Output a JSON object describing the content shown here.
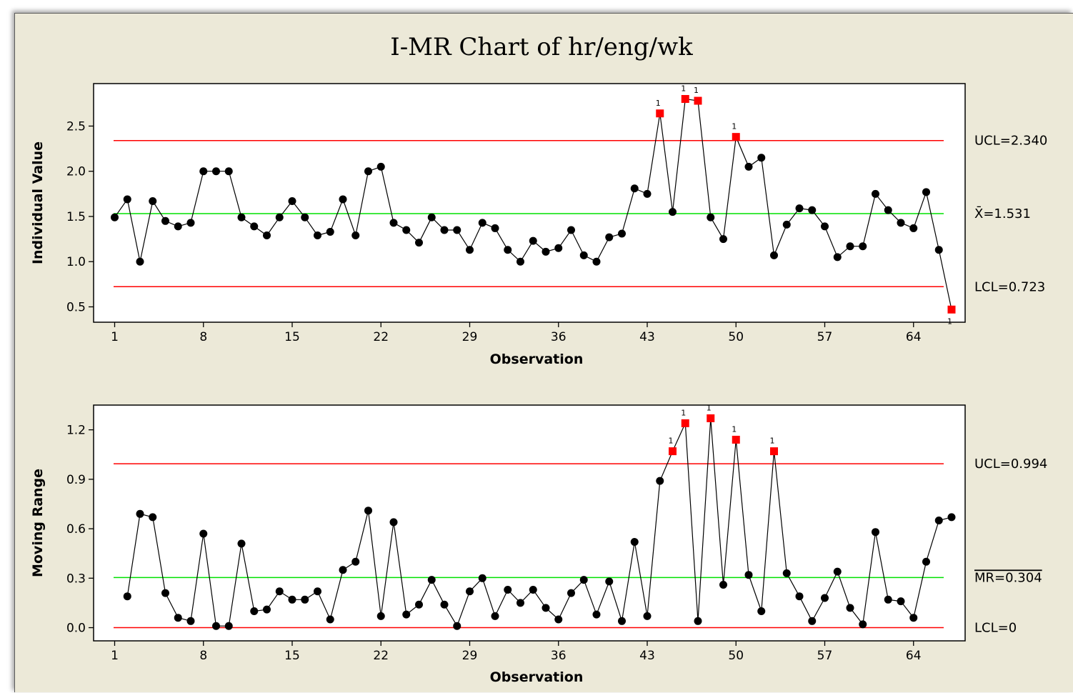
{
  "chart_data": {
    "title": "I-MR Chart of hr/eng/wk",
    "panels": [
      {
        "type": "line",
        "role": "individuals",
        "ylabel": "Individual Value",
        "xlabel": "Observation",
        "ylim": [
          0.33,
          2.97
        ],
        "yticks": [
          0.5,
          1.0,
          1.5,
          2.0,
          2.5
        ],
        "ytick_labels": [
          "0.5",
          "1.0",
          "1.5",
          "2.0",
          "2.5"
        ],
        "xticks": [
          1,
          8,
          15,
          22,
          29,
          36,
          43,
          50,
          57,
          64
        ],
        "xtick_labels": [
          "1",
          "8",
          "15",
          "22",
          "29",
          "36",
          "43",
          "50",
          "57",
          "64"
        ],
        "limits": [
          {
            "label": "UCL=2.340",
            "value": 2.34,
            "color": "#ff0000"
          },
          {
            "label": "X̄=1.531",
            "value": 1.531,
            "color": "#00e000"
          },
          {
            "label": "LCL=0.723",
            "value": 0.723,
            "color": "#ff0000"
          }
        ],
        "flag_mark": "1",
        "flagged": [
          44,
          46,
          47,
          50,
          67
        ],
        "values": [
          1.49,
          1.69,
          1.0,
          1.67,
          1.45,
          1.39,
          1.43,
          2.0,
          2.0,
          2.0,
          1.49,
          1.39,
          1.29,
          1.49,
          1.67,
          1.49,
          1.29,
          1.33,
          1.69,
          1.29,
          2.0,
          2.05,
          1.43,
          1.35,
          1.21,
          1.49,
          1.35,
          1.35,
          1.13,
          1.43,
          1.37,
          1.13,
          1.0,
          1.23,
          1.11,
          1.15,
          1.35,
          1.07,
          1.0,
          1.27,
          1.31,
          1.81,
          1.75,
          2.64,
          1.55,
          2.8,
          2.78,
          1.49,
          1.25,
          2.38,
          2.05,
          2.15,
          1.07,
          1.41,
          1.59,
          1.57,
          1.39,
          1.05,
          1.17,
          1.17,
          1.75,
          1.57,
          1.43,
          1.37,
          1.77,
          1.13,
          0.47
        ]
      },
      {
        "type": "line",
        "role": "moving-range",
        "ylabel": "Moving Range",
        "xlabel": "Observation",
        "ylim": [
          -0.08,
          1.35
        ],
        "yticks": [
          0.0,
          0.3,
          0.6,
          0.9,
          1.2
        ],
        "ytick_labels": [
          "0.0",
          "0.3",
          "0.6",
          "0.9",
          "1.2"
        ],
        "xticks": [
          1,
          8,
          15,
          22,
          29,
          36,
          43,
          50,
          57,
          64
        ],
        "xtick_labels": [
          "1",
          "8",
          "15",
          "22",
          "29",
          "36",
          "43",
          "50",
          "57",
          "64"
        ],
        "limits": [
          {
            "label": "UCL=0.994",
            "value": 0.994,
            "color": "#ff0000"
          },
          {
            "label": "MR=0.304",
            "overline": true,
            "value": 0.304,
            "color": "#00e000"
          },
          {
            "label": "LCL=0",
            "value": 0.0,
            "color": "#ff0000"
          }
        ],
        "flag_mark": "1",
        "flagged": [
          45,
          46,
          48,
          50,
          53
        ],
        "x_start": 2,
        "values": [
          0.19,
          0.69,
          0.67,
          0.21,
          0.06,
          0.04,
          0.57,
          0.01,
          0.01,
          0.51,
          0.1,
          0.11,
          0.22,
          0.17,
          0.17,
          0.22,
          0.05,
          0.35,
          0.4,
          0.71,
          0.07,
          0.64,
          0.08,
          0.14,
          0.29,
          0.14,
          0.01,
          0.22,
          0.3,
          0.07,
          0.23,
          0.15,
          0.23,
          0.12,
          0.05,
          0.21,
          0.29,
          0.08,
          0.28,
          0.04,
          0.52,
          0.07,
          0.89,
          1.07,
          1.24,
          0.04,
          1.27,
          0.26,
          1.14,
          0.32,
          0.1,
          1.07,
          0.33,
          0.19,
          0.04,
          0.18,
          0.34,
          0.12,
          0.02,
          0.58,
          0.17,
          0.16,
          0.06,
          0.4,
          0.65,
          0.67
        ]
      }
    ],
    "colors": {
      "frame_bg": "#ece9d8",
      "plot_bg": "#ffffff",
      "point": "#000000",
      "flagged_point": "#ff0000",
      "line": "#000000"
    }
  }
}
